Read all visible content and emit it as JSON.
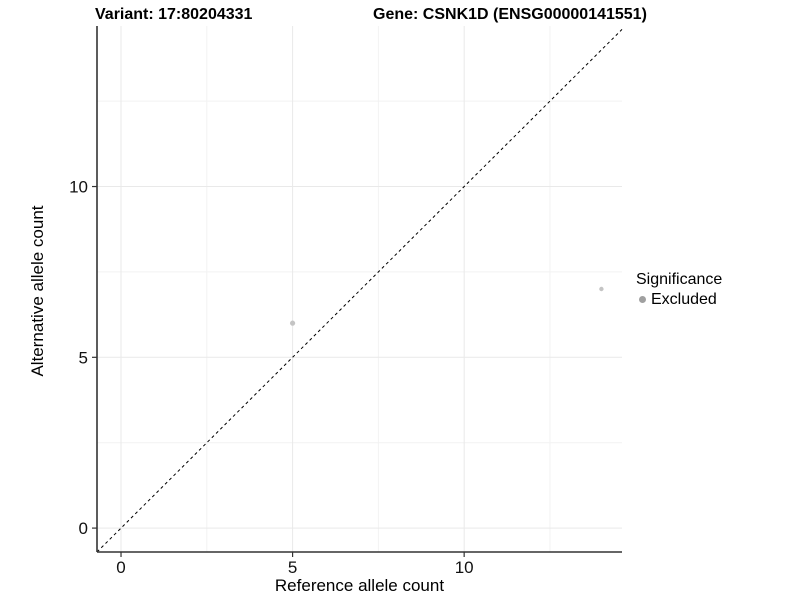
{
  "header": {
    "variant_title": "Variant: 17:80204331",
    "gene_title": "Gene: CSNK1D (ENSG00000141551)"
  },
  "chart_data": {
    "type": "scatter",
    "xlabel": "Reference allele count",
    "ylabel": "Alternative allele count",
    "xlim": [
      -0.7,
      14.6
    ],
    "ylim": [
      -0.7,
      14.7
    ],
    "x_major_ticks": [
      0,
      5,
      10
    ],
    "y_major_ticks": [
      0,
      5,
      10
    ],
    "x_minor_gridlines": [
      2.5,
      7.5,
      12.5
    ],
    "y_minor_gridlines": [
      2.5,
      7.5,
      12.5
    ],
    "grid": true,
    "identity_line": {
      "from": -0.7,
      "to": 14.6,
      "style": "dashed",
      "color": "#000000"
    },
    "series": [
      {
        "name": "Excluded",
        "color": "#c4c4c4",
        "points": [
          {
            "x": 5,
            "y": 6,
            "r": 2.6
          },
          {
            "x": 14,
            "y": 7,
            "r": 2.2
          }
        ]
      }
    ],
    "legend": {
      "title": "Significance",
      "position": "right",
      "items": [
        {
          "label": "Excluded",
          "color": "#a0a0a0"
        }
      ]
    }
  },
  "style": {
    "axis_line_color": "#333333",
    "tick_color": "#333333",
    "major_grid_color": "#e9e9e9",
    "minor_grid_color": "#f2f2f2",
    "tick_label_color": "#111111"
  }
}
